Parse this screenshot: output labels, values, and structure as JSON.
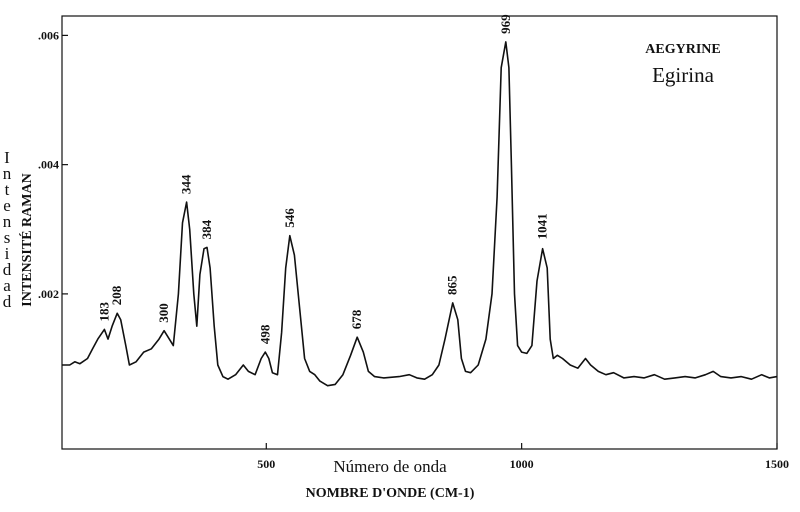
{
  "chart_data": {
    "type": "line",
    "title": "AEGYRINE",
    "subtitle": "Egirina",
    "xlabel": "NOMBRE D'ONDE (CM-1)",
    "xlabel_es": "Número de onda",
    "ylabel": "INTENSITÉ RAMAN",
    "ylabel_es": "Intensidad",
    "xlim": [
      100,
      1500
    ],
    "ylim": [
      -0.0004,
      0.0063
    ],
    "x_ticks": [
      500,
      1000,
      1500
    ],
    "y_ticks": [
      0.002,
      0.004,
      0.006
    ],
    "x_tick_labels": [
      "500",
      "1000",
      "1500"
    ],
    "y_tick_labels": [
      ".002",
      ".004",
      ".006"
    ],
    "grid": false,
    "legend": "none",
    "series": [
      {
        "points": [
          [
            100,
            0.0009
          ],
          [
            115,
            0.0009
          ],
          [
            125,
            0.00095
          ],
          [
            135,
            0.00092
          ],
          [
            150,
            0.001
          ],
          [
            160,
            0.00115
          ],
          [
            170,
            0.0013
          ],
          [
            183,
            0.00145
          ],
          [
            190,
            0.0013
          ],
          [
            198,
            0.0015
          ],
          [
            208,
            0.0017
          ],
          [
            215,
            0.0016
          ],
          [
            225,
            0.0012
          ],
          [
            232,
            0.0009
          ],
          [
            245,
            0.00095
          ],
          [
            260,
            0.0011
          ],
          [
            275,
            0.00115
          ],
          [
            290,
            0.0013
          ],
          [
            300,
            0.00143
          ],
          [
            310,
            0.0013
          ],
          [
            318,
            0.0012
          ],
          [
            328,
            0.002
          ],
          [
            336,
            0.0031
          ],
          [
            344,
            0.00342
          ],
          [
            350,
            0.003
          ],
          [
            358,
            0.002
          ],
          [
            364,
            0.0015
          ],
          [
            370,
            0.0023
          ],
          [
            378,
            0.0027
          ],
          [
            384,
            0.00272
          ],
          [
            390,
            0.0024
          ],
          [
            398,
            0.0015
          ],
          [
            405,
            0.0009
          ],
          [
            415,
            0.00072
          ],
          [
            425,
            0.00068
          ],
          [
            440,
            0.00075
          ],
          [
            455,
            0.0009
          ],
          [
            465,
            0.0008
          ],
          [
            478,
            0.00075
          ],
          [
            490,
            0.001
          ],
          [
            498,
            0.0011
          ],
          [
            505,
            0.001
          ],
          [
            512,
            0.00078
          ],
          [
            522,
            0.00075
          ],
          [
            530,
            0.0014
          ],
          [
            538,
            0.0024
          ],
          [
            546,
            0.0029
          ],
          [
            555,
            0.0026
          ],
          [
            565,
            0.0018
          ],
          [
            575,
            0.001
          ],
          [
            585,
            0.0008
          ],
          [
            595,
            0.00075
          ],
          [
            605,
            0.00065
          ],
          [
            620,
            0.00058
          ],
          [
            635,
            0.0006
          ],
          [
            650,
            0.00075
          ],
          [
            665,
            0.00105
          ],
          [
            678,
            0.00133
          ],
          [
            690,
            0.0011
          ],
          [
            700,
            0.0008
          ],
          [
            712,
            0.00072
          ],
          [
            730,
            0.0007
          ],
          [
            760,
            0.00072
          ],
          [
            780,
            0.00075
          ],
          [
            795,
            0.0007
          ],
          [
            810,
            0.00068
          ],
          [
            825,
            0.00075
          ],
          [
            838,
            0.0009
          ],
          [
            850,
            0.0013
          ],
          [
            865,
            0.00186
          ],
          [
            875,
            0.0016
          ],
          [
            882,
            0.001
          ],
          [
            890,
            0.0008
          ],
          [
            900,
            0.00078
          ],
          [
            915,
            0.0009
          ],
          [
            930,
            0.0013
          ],
          [
            942,
            0.002
          ],
          [
            952,
            0.0035
          ],
          [
            960,
            0.0055
          ],
          [
            969,
            0.0059
          ],
          [
            975,
            0.0055
          ],
          [
            980,
            0.004
          ],
          [
            986,
            0.002
          ],
          [
            992,
            0.0012
          ],
          [
            1000,
            0.0011
          ],
          [
            1010,
            0.00108
          ],
          [
            1020,
            0.0012
          ],
          [
            1030,
            0.0022
          ],
          [
            1041,
            0.0027
          ],
          [
            1050,
            0.0024
          ],
          [
            1056,
            0.0013
          ],
          [
            1062,
            0.001
          ],
          [
            1070,
            0.00105
          ],
          [
            1080,
            0.001
          ],
          [
            1095,
            0.0009
          ],
          [
            1110,
            0.00085
          ],
          [
            1125,
            0.001
          ],
          [
            1135,
            0.0009
          ],
          [
            1150,
            0.0008
          ],
          [
            1165,
            0.00075
          ],
          [
            1180,
            0.00078
          ],
          [
            1200,
            0.0007
          ],
          [
            1220,
            0.00072
          ],
          [
            1240,
            0.0007
          ],
          [
            1260,
            0.00075
          ],
          [
            1280,
            0.00068
          ],
          [
            1300,
            0.0007
          ],
          [
            1320,
            0.00072
          ],
          [
            1340,
            0.0007
          ],
          [
            1360,
            0.00075
          ],
          [
            1375,
            0.0008
          ],
          [
            1390,
            0.00072
          ],
          [
            1410,
            0.0007
          ],
          [
            1430,
            0.00072
          ],
          [
            1450,
            0.00068
          ],
          [
            1470,
            0.00075
          ],
          [
            1485,
            0.0007
          ],
          [
            1500,
            0.00072
          ]
        ]
      }
    ],
    "peak_labels": [
      {
        "x": 183,
        "y": 0.00145,
        "text": "183"
      },
      {
        "x": 208,
        "y": 0.0017,
        "text": "208"
      },
      {
        "x": 300,
        "y": 0.00143,
        "text": "300"
      },
      {
        "x": 344,
        "y": 0.00342,
        "text": "344"
      },
      {
        "x": 384,
        "y": 0.00272,
        "text": "384"
      },
      {
        "x": 498,
        "y": 0.0011,
        "text": "498"
      },
      {
        "x": 546,
        "y": 0.0029,
        "text": "546"
      },
      {
        "x": 678,
        "y": 0.00133,
        "text": "678"
      },
      {
        "x": 865,
        "y": 0.00186,
        "text": "865"
      },
      {
        "x": 969,
        "y": 0.0059,
        "text": "969"
      },
      {
        "x": 1041,
        "y": 0.00272,
        "text": "1041"
      }
    ]
  }
}
